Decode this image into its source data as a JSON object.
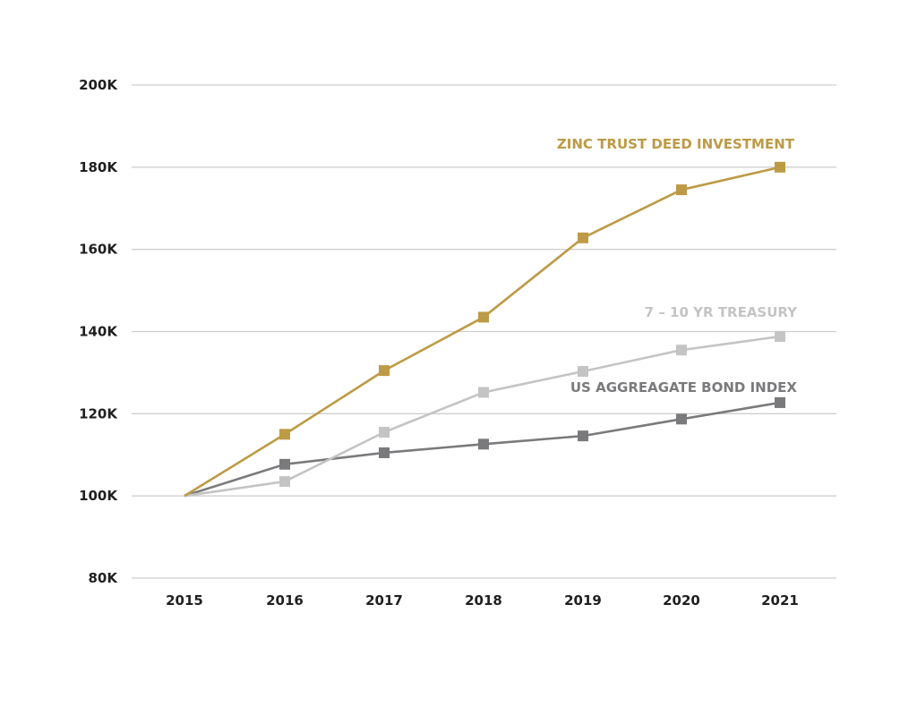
{
  "chart_data": {
    "type": "line",
    "title": "",
    "xlabel": "",
    "ylabel": "",
    "x": [
      "2015",
      "2016",
      "2017",
      "2018",
      "2019",
      "2020",
      "2021"
    ],
    "yticks": [
      "80K",
      "100K",
      "120K",
      "140K",
      "160K",
      "180K",
      "200K"
    ],
    "ylim": [
      80000,
      200000
    ],
    "grid": "horizontal",
    "legend": "inline labels",
    "series": [
      {
        "name": "ZINC TRUST DEED INVESTMENT",
        "color": "#bd9a45",
        "values": [
          100000,
          115000,
          130500,
          143500,
          162800,
          174500,
          180000
        ]
      },
      {
        "name": "7 – 10 YR TREASURY",
        "color": "#c4c4c4",
        "values": [
          100000,
          103500,
          115500,
          125200,
          130300,
          135500,
          138800
        ]
      },
      {
        "name": "US AGGREAGATE BOND INDEX",
        "color": "#7a7a7c",
        "values": [
          100000,
          107700,
          110500,
          112600,
          114600,
          118700,
          122700
        ]
      }
    ]
  }
}
